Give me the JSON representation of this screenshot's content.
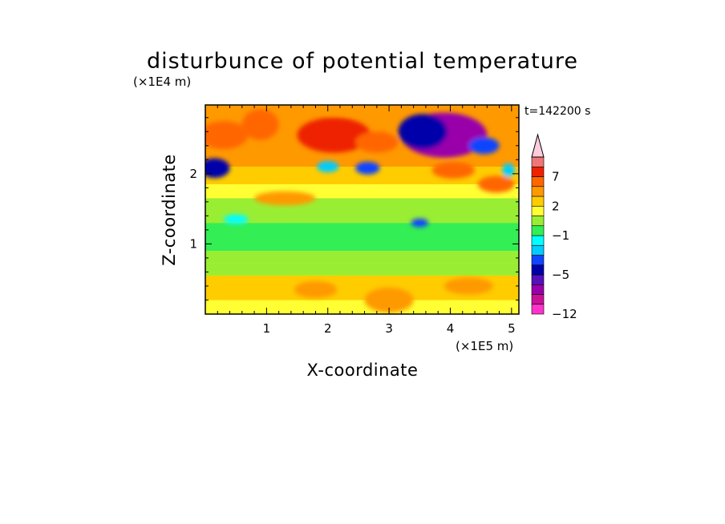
{
  "chart_data": {
    "type": "heatmap",
    "title": "disturbunce of potential temperature",
    "xlabel": "X-coordinate",
    "ylabel": "Z-coordinate",
    "x_unit": "(×1E5 m)",
    "y_unit": "(×1E4 m)",
    "time_label": "t=142200 s",
    "xlim": [
      0,
      5.12
    ],
    "ylim": [
      0,
      2.98
    ],
    "x_ticks": [
      1,
      2,
      3,
      4,
      5
    ],
    "y_ticks": [
      1,
      2
    ],
    "colorbar": {
      "levels": [
        -12,
        -10,
        -8,
        -6,
        -5,
        -4,
        -3,
        -2,
        -1,
        0,
        1,
        2,
        3,
        5,
        7,
        9,
        11
      ],
      "tick_values": [
        -12,
        -5,
        -1,
        2,
        7
      ],
      "tick_labels": [
        "−12",
        "−5",
        "−1",
        "2",
        "7"
      ],
      "colors": [
        "#ff33cc",
        "#cc1199",
        "#9900aa",
        "#5511bb",
        "#0000aa",
        "#1144ff",
        "#00ccff",
        "#00ffff",
        "#33ee55",
        "#99ee33",
        "#ffff33",
        "#ffcc00",
        "#ff9900",
        "#ff6600",
        "#ee2200",
        "#ee7777",
        "#ffccdd"
      ],
      "extend": "max"
    },
    "bands": [
      {
        "z": [
          0.0,
          0.2
        ],
        "value": 1.5
      },
      {
        "z": [
          0.2,
          0.55
        ],
        "value": 2.2
      },
      {
        "z": [
          0.55,
          0.72
        ],
        "value": 0.8
      },
      {
        "z": [
          0.72,
          0.9
        ],
        "value": 0.2
      },
      {
        "z": [
          0.9,
          1.3
        ],
        "value": -0.5
      },
      {
        "z": [
          1.3,
          1.45
        ],
        "value": 0.4
      },
      {
        "z": [
          1.45,
          1.65
        ],
        "value": 0.9
      },
      {
        "z": [
          1.65,
          1.85
        ],
        "value": 1.8
      },
      {
        "z": [
          1.85,
          2.1
        ],
        "value": 2.4
      },
      {
        "z": [
          2.1,
          2.98
        ],
        "value": 3.0
      }
    ],
    "features": [
      {
        "x": 3.9,
        "z": 2.55,
        "value": -8,
        "rx": 0.7,
        "rz": 0.32
      },
      {
        "x": 3.55,
        "z": 2.6,
        "value": -5,
        "rx": 0.4,
        "rz": 0.25
      },
      {
        "x": 4.55,
        "z": 2.4,
        "value": -4,
        "rx": 0.25,
        "rz": 0.12
      },
      {
        "x": 0.15,
        "z": 2.08,
        "value": -5,
        "rx": 0.25,
        "rz": 0.14
      },
      {
        "x": 2.65,
        "z": 2.08,
        "value": -4,
        "rx": 0.2,
        "rz": 0.09
      },
      {
        "x": 2.0,
        "z": 2.1,
        "value": -3,
        "rx": 0.18,
        "rz": 0.08
      },
      {
        "x": 3.5,
        "z": 1.3,
        "value": -4,
        "rx": 0.14,
        "rz": 0.06
      },
      {
        "x": 4.95,
        "z": 2.05,
        "value": -3,
        "rx": 0.1,
        "rz": 0.1
      },
      {
        "x": 0.5,
        "z": 1.35,
        "value": -2,
        "rx": 0.2,
        "rz": 0.07
      },
      {
        "x": 0.3,
        "z": 2.55,
        "value": 6,
        "rx": 0.4,
        "rz": 0.2
      },
      {
        "x": 0.9,
        "z": 2.7,
        "value": 5,
        "rx": 0.3,
        "rz": 0.22
      },
      {
        "x": 2.1,
        "z": 2.55,
        "value": 7,
        "rx": 0.6,
        "rz": 0.25
      },
      {
        "x": 2.8,
        "z": 2.45,
        "value": 6,
        "rx": 0.35,
        "rz": 0.15
      },
      {
        "x": 4.05,
        "z": 2.05,
        "value": 6,
        "rx": 0.35,
        "rz": 0.12
      },
      {
        "x": 4.75,
        "z": 1.85,
        "value": 6,
        "rx": 0.3,
        "rz": 0.12
      },
      {
        "x": 1.3,
        "z": 1.65,
        "value": 3,
        "rx": 0.5,
        "rz": 0.1
      },
      {
        "x": 3.0,
        "z": 0.2,
        "value": 4,
        "rx": 0.4,
        "rz": 0.18
      },
      {
        "x": 1.8,
        "z": 0.35,
        "value": 3,
        "rx": 0.35,
        "rz": 0.12
      },
      {
        "x": 4.3,
        "z": 0.4,
        "value": 3,
        "rx": 0.4,
        "rz": 0.12
      },
      {
        "x": 2.3,
        "z": 2.95,
        "value": 4,
        "rx": 0.5,
        "rz": 0.1
      }
    ]
  }
}
